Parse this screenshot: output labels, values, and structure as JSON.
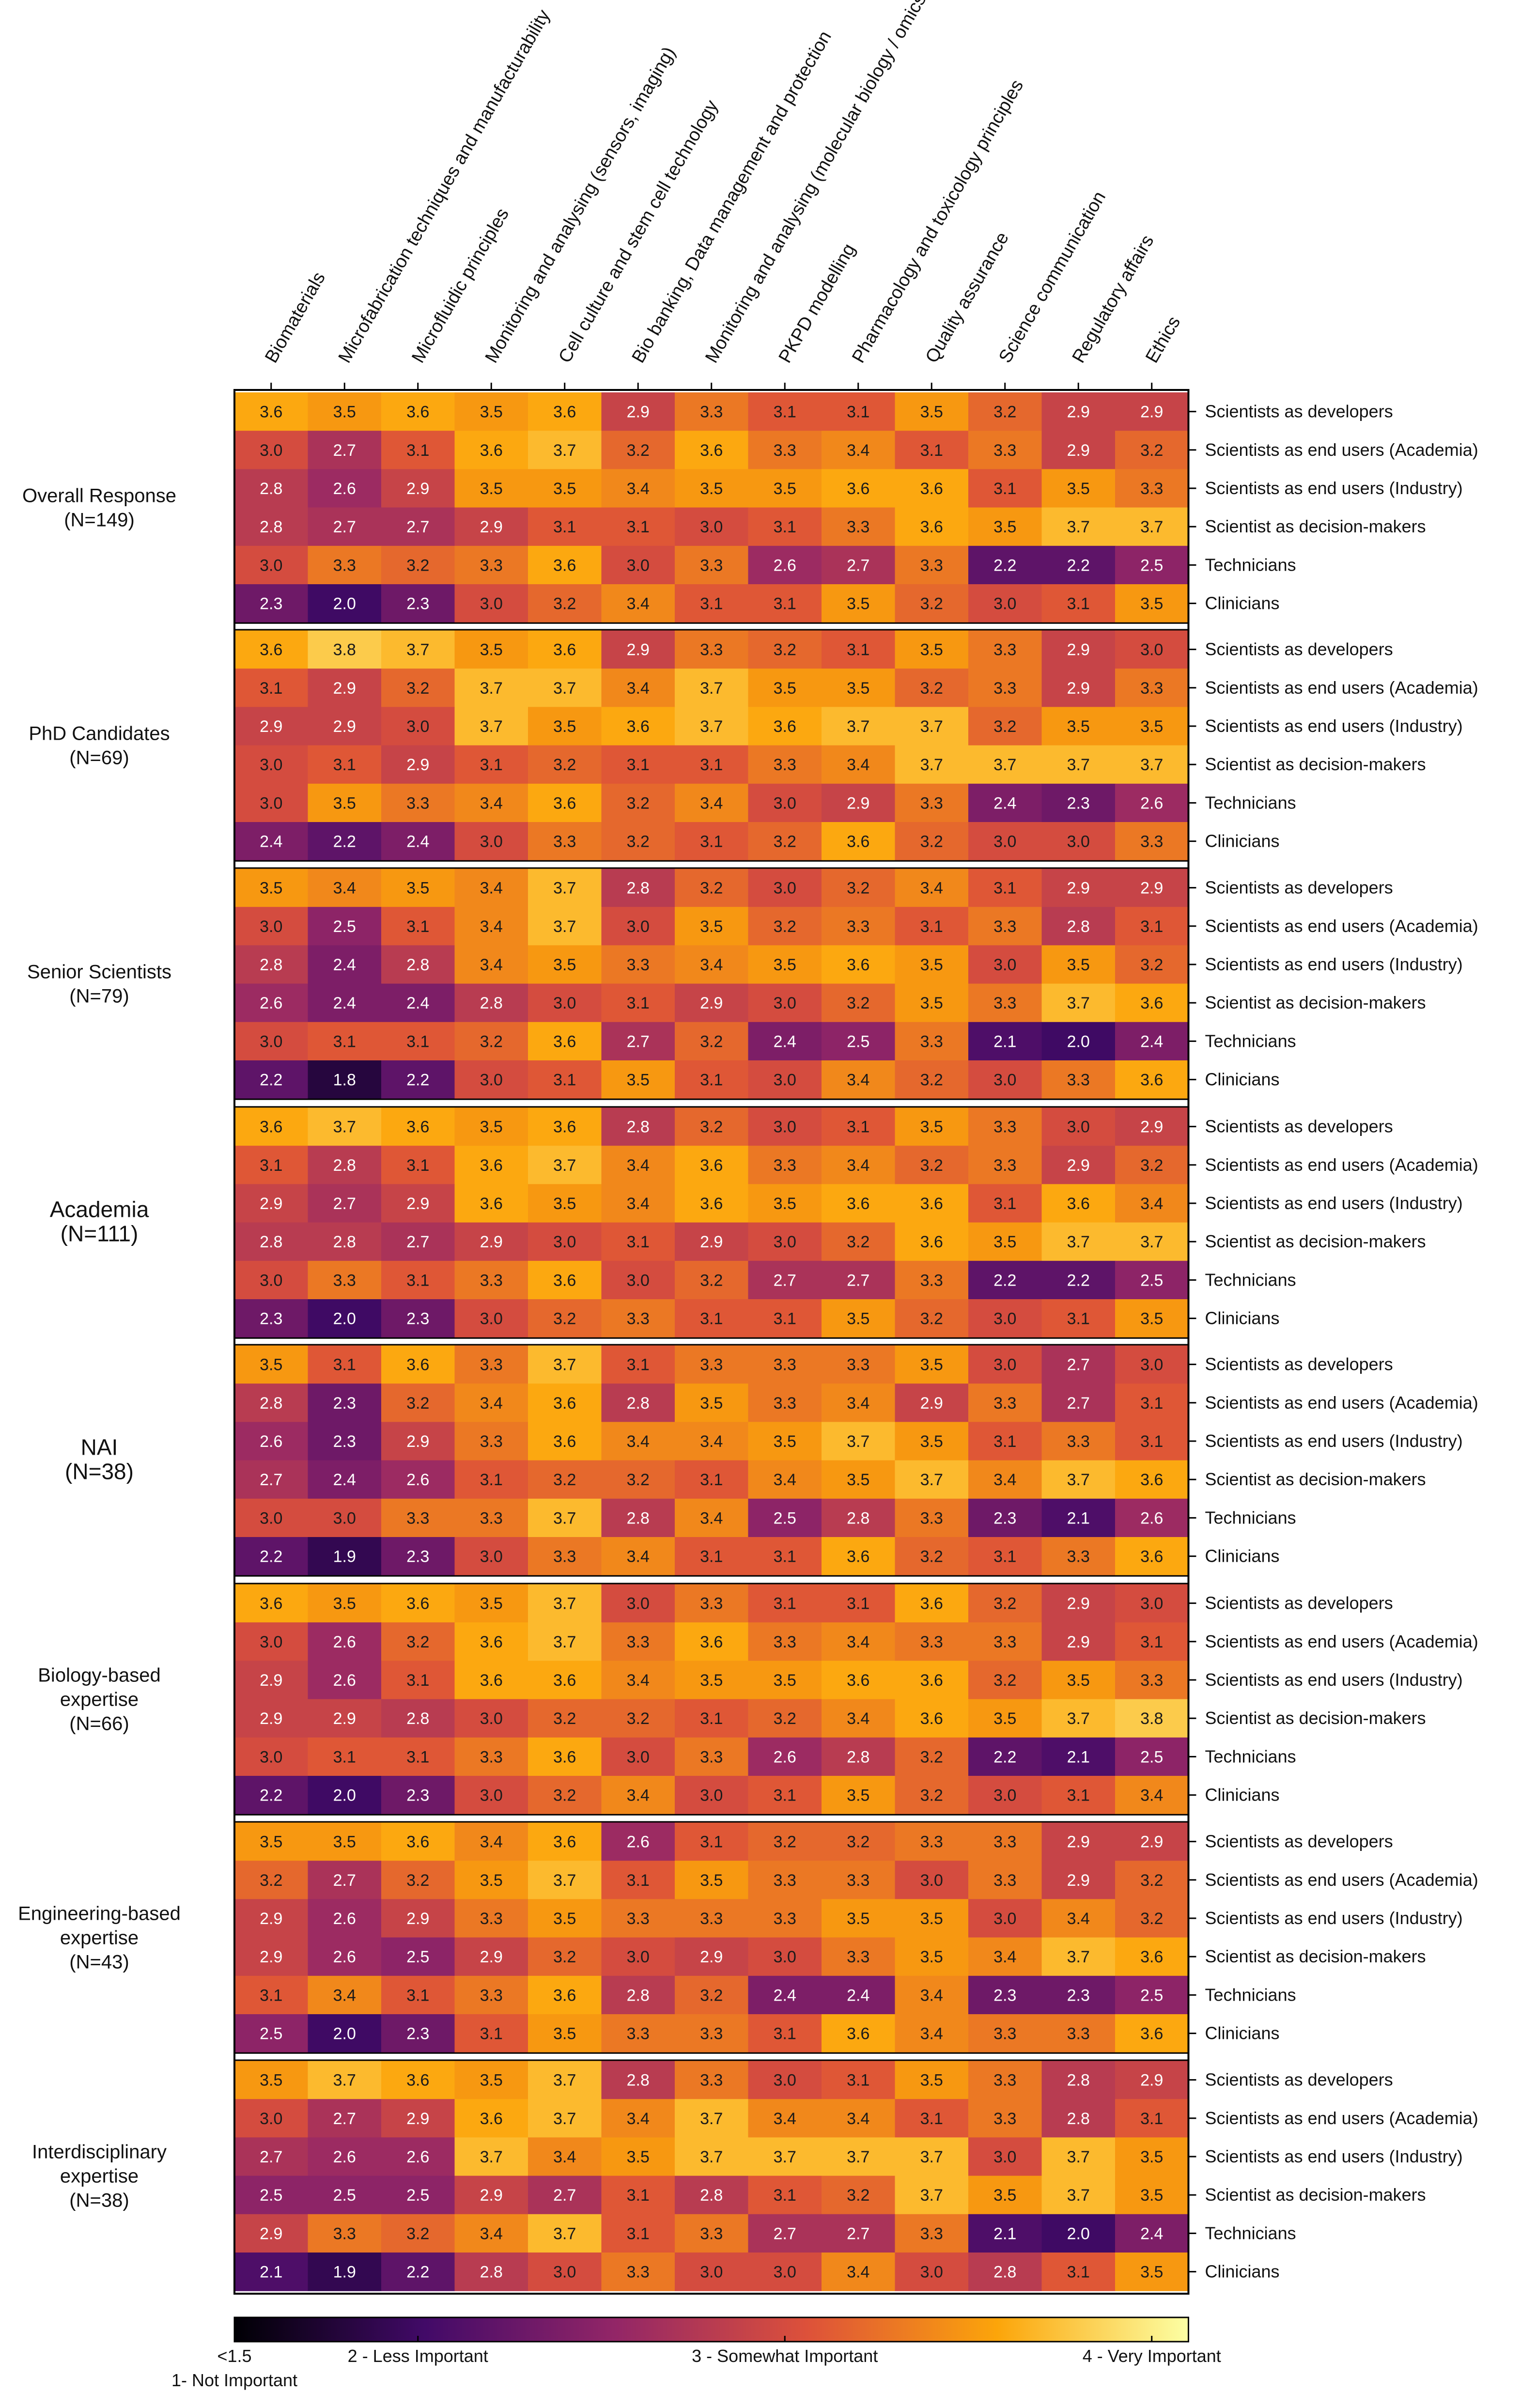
{
  "chart_data": {
    "type": "heatmap",
    "title": "",
    "columns": [
      "Biomaterials",
      "Microfabrication techniques and manufacturability",
      "Microfluidic principles",
      "Monitoring and analysing (sensors, imaging)",
      "Cell culture and stem cell technology",
      "Bio banking, Data management and protection",
      "Monitoring and analysing (molecular biology / omics)",
      "PKPD modelling",
      "Pharmacology and toxicology principles",
      "Quality assurance",
      "Science communication",
      "Regulatory affairs",
      "Ethics"
    ],
    "groups": [
      {
        "label": "Overall Response",
        "n": "(N=149)",
        "rows": [
          "Scientists as developers",
          "Scientists as end users (Academia)",
          "Scientists as end users (Industry)",
          "Scientist as decision-makers",
          "Technicians",
          "Clinicians"
        ],
        "values": [
          [
            3.6,
            3.5,
            3.6,
            3.5,
            3.6,
            2.9,
            3.3,
            3.1,
            3.1,
            3.5,
            3.2,
            2.9,
            2.9
          ],
          [
            3.0,
            2.7,
            3.1,
            3.6,
            3.7,
            3.2,
            3.6,
            3.3,
            3.4,
            3.1,
            3.3,
            2.9,
            3.2
          ],
          [
            2.8,
            2.6,
            2.9,
            3.5,
            3.5,
            3.4,
            3.5,
            3.5,
            3.6,
            3.6,
            3.1,
            3.5,
            3.3
          ],
          [
            2.8,
            2.7,
            2.7,
            2.9,
            3.1,
            3.1,
            3.0,
            3.1,
            3.3,
            3.6,
            3.5,
            3.7,
            3.7
          ],
          [
            3.0,
            3.3,
            3.2,
            3.3,
            3.6,
            3.0,
            3.3,
            2.6,
            2.7,
            3.3,
            2.2,
            2.2,
            2.5
          ],
          [
            2.3,
            2.0,
            2.3,
            3.0,
            3.2,
            3.4,
            3.1,
            3.1,
            3.5,
            3.2,
            3.0,
            3.1,
            3.5
          ]
        ]
      },
      {
        "label": "PhD Candidates",
        "n": "(N=69)",
        "rows": [
          "Scientists as developers",
          "Scientists as end users (Academia)",
          "Scientists as end users (Industry)",
          "Scientist as decision-makers",
          "Technicians",
          "Clinicians"
        ],
        "values": [
          [
            3.6,
            3.8,
            3.7,
            3.5,
            3.6,
            2.9,
            3.3,
            3.2,
            3.1,
            3.5,
            3.3,
            2.9,
            3.0
          ],
          [
            3.1,
            2.9,
            3.2,
            3.7,
            3.7,
            3.4,
            3.7,
            3.5,
            3.5,
            3.2,
            3.3,
            2.9,
            3.3
          ],
          [
            2.9,
            2.9,
            3.0,
            3.7,
            3.5,
            3.6,
            3.7,
            3.6,
            3.7,
            3.7,
            3.2,
            3.5,
            3.5
          ],
          [
            3.0,
            3.1,
            2.9,
            3.1,
            3.2,
            3.1,
            3.1,
            3.3,
            3.4,
            3.7,
            3.7,
            3.7,
            3.7
          ],
          [
            3.0,
            3.5,
            3.3,
            3.4,
            3.6,
            3.2,
            3.4,
            3.0,
            2.9,
            3.3,
            2.4,
            2.3,
            2.6
          ],
          [
            2.4,
            2.2,
            2.4,
            3.0,
            3.3,
            3.2,
            3.1,
            3.2,
            3.6,
            3.2,
            3.0,
            3.0,
            3.3
          ]
        ]
      },
      {
        "label": "Senior Scientists",
        "n": "(N=79)",
        "rows": [
          "Scientists as developers",
          "Scientists as end users (Academia)",
          "Scientists as end users (Industry)",
          "Scientist as decision-makers",
          "Technicians",
          "Clinicians"
        ],
        "values": [
          [
            3.5,
            3.4,
            3.5,
            3.4,
            3.7,
            2.8,
            3.2,
            3.0,
            3.2,
            3.4,
            3.1,
            2.9,
            2.9
          ],
          [
            3.0,
            2.5,
            3.1,
            3.4,
            3.7,
            3.0,
            3.5,
            3.2,
            3.3,
            3.1,
            3.3,
            2.8,
            3.1
          ],
          [
            2.8,
            2.4,
            2.8,
            3.4,
            3.5,
            3.3,
            3.4,
            3.5,
            3.6,
            3.5,
            3.0,
            3.5,
            3.2
          ],
          [
            2.6,
            2.4,
            2.4,
            2.8,
            3.0,
            3.1,
            2.9,
            3.0,
            3.2,
            3.5,
            3.3,
            3.7,
            3.6
          ],
          [
            3.0,
            3.1,
            3.1,
            3.2,
            3.6,
            2.7,
            3.2,
            2.4,
            2.5,
            3.3,
            2.1,
            2.0,
            2.4
          ],
          [
            2.2,
            1.8,
            2.2,
            3.0,
            3.1,
            3.5,
            3.1,
            3.0,
            3.4,
            3.2,
            3.0,
            3.3,
            3.6
          ]
        ]
      },
      {
        "label": "Academia",
        "n": "(N=111)",
        "rows": [
          "Scientists as developers",
          "Scientists as end users (Academia)",
          "Scientists as end users (Industry)",
          "Scientist as decision-makers",
          "Technicians",
          "Clinicians"
        ],
        "values": [
          [
            3.6,
            3.7,
            3.6,
            3.5,
            3.6,
            2.8,
            3.2,
            3.0,
            3.1,
            3.5,
            3.3,
            3.0,
            2.9
          ],
          [
            3.1,
            2.8,
            3.1,
            3.6,
            3.7,
            3.4,
            3.6,
            3.3,
            3.4,
            3.2,
            3.3,
            2.9,
            3.2
          ],
          [
            2.9,
            2.7,
            2.9,
            3.6,
            3.5,
            3.4,
            3.6,
            3.5,
            3.6,
            3.6,
            3.1,
            3.6,
            3.4
          ],
          [
            2.8,
            2.8,
            2.7,
            2.9,
            3.0,
            3.1,
            2.9,
            3.0,
            3.2,
            3.6,
            3.5,
            3.7,
            3.7
          ],
          [
            3.0,
            3.3,
            3.1,
            3.3,
            3.6,
            3.0,
            3.2,
            2.7,
            2.7,
            3.3,
            2.2,
            2.2,
            2.5
          ],
          [
            2.3,
            2.0,
            2.3,
            3.0,
            3.2,
            3.3,
            3.1,
            3.1,
            3.5,
            3.2,
            3.0,
            3.1,
            3.5
          ]
        ]
      },
      {
        "label": "NAI",
        "n": "(N=38)",
        "rows": [
          "Scientists as developers",
          "Scientists as end users (Academia)",
          "Scientists as end users (Industry)",
          "Scientist as decision-makers",
          "Technicians",
          "Clinicians"
        ],
        "values": [
          [
            3.5,
            3.1,
            3.6,
            3.3,
            3.7,
            3.1,
            3.3,
            3.3,
            3.3,
            3.5,
            3.0,
            2.7,
            3.0
          ],
          [
            2.8,
            2.3,
            3.2,
            3.4,
            3.6,
            2.8,
            3.5,
            3.3,
            3.4,
            2.9,
            3.3,
            2.7,
            3.1
          ],
          [
            2.6,
            2.3,
            2.9,
            3.3,
            3.6,
            3.4,
            3.4,
            3.5,
            3.7,
            3.5,
            3.1,
            3.3,
            3.1
          ],
          [
            2.7,
            2.4,
            2.6,
            3.1,
            3.2,
            3.2,
            3.1,
            3.4,
            3.5,
            3.7,
            3.4,
            3.7,
            3.6
          ],
          [
            3.0,
            3.0,
            3.3,
            3.3,
            3.7,
            2.8,
            3.4,
            2.5,
            2.8,
            3.3,
            2.3,
            2.1,
            2.6
          ],
          [
            2.2,
            1.9,
            2.3,
            3.0,
            3.3,
            3.4,
            3.1,
            3.1,
            3.6,
            3.2,
            3.1,
            3.3,
            3.6
          ]
        ]
      },
      {
        "label": "Biology-based expertise",
        "n": "(N=66)",
        "rows": [
          "Scientists as developers",
          "Scientists as end users (Academia)",
          "Scientists as end users (Industry)",
          "Scientist as decision-makers",
          "Technicians",
          "Clinicians"
        ],
        "values": [
          [
            3.6,
            3.5,
            3.6,
            3.5,
            3.7,
            3.0,
            3.3,
            3.1,
            3.1,
            3.6,
            3.2,
            2.9,
            3.0
          ],
          [
            3.0,
            2.6,
            3.2,
            3.6,
            3.7,
            3.3,
            3.6,
            3.3,
            3.4,
            3.3,
            3.3,
            2.9,
            3.1
          ],
          [
            2.9,
            2.6,
            3.1,
            3.6,
            3.6,
            3.4,
            3.5,
            3.5,
            3.6,
            3.6,
            3.2,
            3.5,
            3.3
          ],
          [
            2.9,
            2.9,
            2.8,
            3.0,
            3.2,
            3.2,
            3.1,
            3.2,
            3.4,
            3.6,
            3.5,
            3.7,
            3.8
          ],
          [
            3.0,
            3.1,
            3.1,
            3.3,
            3.6,
            3.0,
            3.3,
            2.6,
            2.8,
            3.2,
            2.2,
            2.1,
            2.5
          ],
          [
            2.2,
            2.0,
            2.3,
            3.0,
            3.2,
            3.4,
            3.0,
            3.1,
            3.5,
            3.2,
            3.0,
            3.1,
            3.4
          ]
        ]
      },
      {
        "label": "Engineering-based expertise",
        "n": "(N=43)",
        "rows": [
          "Scientists as developers",
          "Scientists as end users (Academia)",
          "Scientists as end users (Industry)",
          "Scientist as decision-makers",
          "Technicians",
          "Clinicians"
        ],
        "values": [
          [
            3.5,
            3.5,
            3.6,
            3.4,
            3.6,
            2.6,
            3.1,
            3.2,
            3.2,
            3.3,
            3.3,
            2.9,
            2.9
          ],
          [
            3.2,
            2.7,
            3.2,
            3.5,
            3.7,
            3.1,
            3.5,
            3.3,
            3.3,
            3.0,
            3.3,
            2.9,
            3.2
          ],
          [
            2.9,
            2.6,
            2.9,
            3.3,
            3.5,
            3.3,
            3.3,
            3.3,
            3.5,
            3.5,
            3.0,
            3.4,
            3.2
          ],
          [
            2.9,
            2.6,
            2.5,
            2.9,
            3.2,
            3.0,
            2.9,
            3.0,
            3.3,
            3.5,
            3.4,
            3.7,
            3.6
          ],
          [
            3.1,
            3.4,
            3.1,
            3.3,
            3.6,
            2.8,
            3.2,
            2.4,
            2.4,
            3.4,
            2.3,
            2.3,
            2.5
          ],
          [
            2.5,
            2.0,
            2.3,
            3.1,
            3.5,
            3.3,
            3.3,
            3.1,
            3.6,
            3.4,
            3.3,
            3.3,
            3.6
          ]
        ]
      },
      {
        "label": "Interdisciplinary expertise",
        "n": "(N=38)",
        "rows": [
          "Scientists as developers",
          "Scientists as end users (Academia)",
          "Scientists as end users (Industry)",
          "Scientist as decision-makers",
          "Technicians",
          "Clinicians"
        ],
        "values": [
          [
            3.5,
            3.7,
            3.6,
            3.5,
            3.7,
            2.8,
            3.3,
            3.0,
            3.1,
            3.5,
            3.3,
            2.8,
            2.9
          ],
          [
            3.0,
            2.7,
            2.9,
            3.6,
            3.7,
            3.4,
            3.7,
            3.4,
            3.4,
            3.1,
            3.3,
            2.8,
            3.1
          ],
          [
            2.7,
            2.6,
            2.6,
            3.7,
            3.4,
            3.5,
            3.7,
            3.7,
            3.7,
            3.7,
            3.0,
            3.7,
            3.5
          ],
          [
            2.5,
            2.5,
            2.5,
            2.9,
            2.7,
            3.1,
            2.8,
            3.1,
            3.2,
            3.7,
            3.5,
            3.7,
            3.5
          ],
          [
            2.9,
            3.3,
            3.2,
            3.4,
            3.7,
            3.1,
            3.3,
            2.7,
            2.7,
            3.3,
            2.1,
            2.0,
            2.4
          ],
          [
            2.1,
            1.9,
            2.2,
            2.8,
            3.0,
            3.3,
            3.0,
            3.0,
            3.4,
            3.0,
            2.8,
            3.1,
            3.5
          ]
        ]
      }
    ],
    "colorbar": {
      "min": 1.5,
      "max": 4.1,
      "colors": [
        "#000004",
        "#420a68",
        "#932667",
        "#dd513a",
        "#fca50a",
        "#fcffa4"
      ],
      "labels": [
        {
          "value": 1.5,
          "text": "<1.5"
        },
        {
          "value": 2,
          "text": "2 - Less Important"
        },
        {
          "value": 3,
          "text": "3 - Somewhat Important"
        },
        {
          "value": 4,
          "text": "4 - Very Important"
        }
      ],
      "below_label": "1- Not Important"
    }
  }
}
